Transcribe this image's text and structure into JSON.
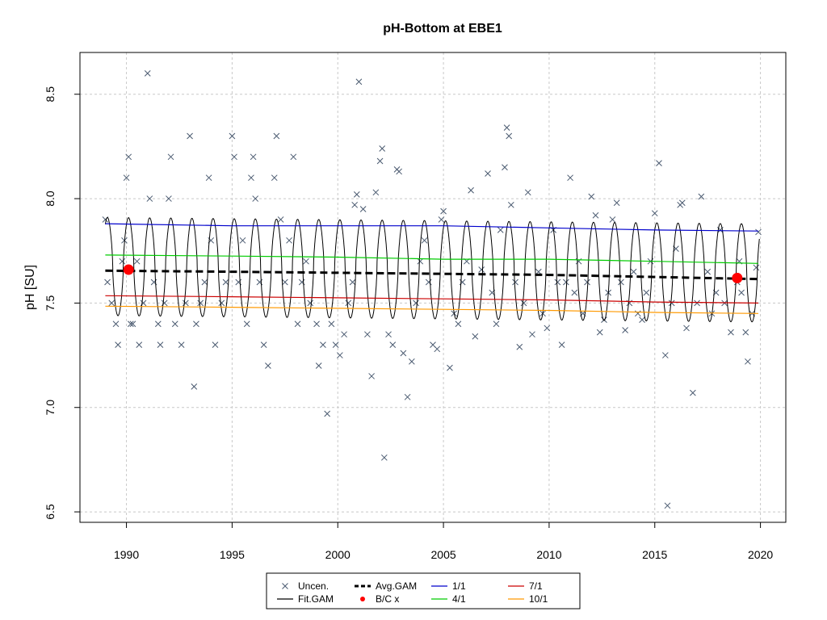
{
  "chart_data": {
    "type": "scatter",
    "title": "pH-Bottom at EBE1",
    "xlabel": "",
    "ylabel": "pH [SU]",
    "xlim": [
      1987.8,
      2021.2
    ],
    "ylim": [
      6.45,
      8.7
    ],
    "grid": true,
    "xticks": [
      1990,
      1995,
      2000,
      2005,
      2010,
      2015,
      2020
    ],
    "yticks": [
      6.5,
      7.0,
      7.5,
      8.0,
      8.5
    ],
    "ytick_labels": [
      "6.5",
      "7.0",
      "7.5",
      "8.0",
      "8.5"
    ],
    "legend_position": "bottom-center",
    "legend": [
      {
        "label": "Uncen.",
        "color": "#4a5a70",
        "kind": "x"
      },
      {
        "label": "Fit.GAM",
        "color": "#000000",
        "kind": "line"
      },
      {
        "label": "Avg.GAM",
        "color": "#000000",
        "kind": "dashed"
      },
      {
        "label": "B/C x",
        "color": "#ff0000",
        "kind": "dot"
      },
      {
        "label": "1/1",
        "color": "#0000cc",
        "kind": "line"
      },
      {
        "label": "4/1",
        "color": "#00cc00",
        "kind": "line"
      },
      {
        "label": "7/1",
        "color": "#cc0000",
        "kind": "line"
      },
      {
        "label": "10/1",
        "color": "#ff9900",
        "kind": "line"
      }
    ],
    "seasonal_lines": [
      {
        "name": "1/1",
        "color": "#0000cc",
        "x": [
          1989.0,
          1995,
          2000,
          2005,
          2010,
          2015,
          2019.9
        ],
        "y": [
          7.88,
          7.87,
          7.87,
          7.87,
          7.86,
          7.85,
          7.845
        ]
      },
      {
        "name": "4/1",
        "color": "#00cc00",
        "x": [
          1989.0,
          1995,
          2000,
          2005,
          2010,
          2015,
          2019.9
        ],
        "y": [
          7.73,
          7.725,
          7.72,
          7.71,
          7.71,
          7.7,
          7.69
        ]
      },
      {
        "name": "7/1",
        "color": "#cc0000",
        "x": [
          1989.0,
          1995,
          2000,
          2005,
          2010,
          2015,
          2019.9
        ],
        "y": [
          7.535,
          7.53,
          7.525,
          7.52,
          7.515,
          7.505,
          7.5
        ]
      },
      {
        "name": "10/1",
        "color": "#ff9900",
        "x": [
          1989.0,
          1995,
          2000,
          2005,
          2010,
          2015,
          2019.9
        ],
        "y": [
          7.485,
          7.48,
          7.475,
          7.47,
          7.465,
          7.455,
          7.45
        ]
      }
    ],
    "avg_gam": {
      "x": [
        1989.0,
        1995,
        2000,
        2005,
        2010,
        2015,
        2019.9
      ],
      "y": [
        7.655,
        7.65,
        7.645,
        7.64,
        7.635,
        7.625,
        7.615
      ]
    },
    "fit_gam": {
      "start": 1989.0,
      "end": 2019.95,
      "peak_x": [
        1989.0,
        2019.0
      ],
      "peak_y": [
        7.91,
        7.88
      ],
      "trough_x": [
        1989.0,
        2019.0
      ],
      "trough_y": [
        7.44,
        7.41
      ],
      "peak_phase": 0.1
    },
    "bc_points": [
      {
        "x": 1990.1,
        "y": 7.66
      },
      {
        "x": 2018.9,
        "y": 7.62
      }
    ],
    "uncensored": [
      [
        1989.0,
        7.9
      ],
      [
        1989.1,
        7.6
      ],
      [
        1989.3,
        7.5
      ],
      [
        1989.5,
        7.4
      ],
      [
        1989.6,
        7.3
      ],
      [
        1989.8,
        7.7
      ],
      [
        1989.9,
        7.8
      ],
      [
        1990.0,
        8.1
      ],
      [
        1990.1,
        8.2
      ],
      [
        1990.2,
        7.4
      ],
      [
        1990.3,
        7.4
      ],
      [
        1990.5,
        7.7
      ],
      [
        1990.6,
        7.3
      ],
      [
        1990.8,
        7.5
      ],
      [
        1991.0,
        8.6
      ],
      [
        1991.1,
        8.0
      ],
      [
        1991.3,
        7.6
      ],
      [
        1991.5,
        7.4
      ],
      [
        1991.6,
        7.3
      ],
      [
        1991.8,
        7.5
      ],
      [
        1992.0,
        8.0
      ],
      [
        1992.1,
        8.2
      ],
      [
        1992.3,
        7.4
      ],
      [
        1992.6,
        7.3
      ],
      [
        1992.8,
        7.5
      ],
      [
        1993.0,
        8.3
      ],
      [
        1993.2,
        7.1
      ],
      [
        1993.3,
        7.4
      ],
      [
        1993.5,
        7.5
      ],
      [
        1993.7,
        7.6
      ],
      [
        1993.9,
        8.1
      ],
      [
        1994.0,
        7.8
      ],
      [
        1994.2,
        7.3
      ],
      [
        1994.5,
        7.5
      ],
      [
        1994.7,
        7.6
      ],
      [
        1995.0,
        8.3
      ],
      [
        1995.1,
        8.2
      ],
      [
        1995.3,
        7.6
      ],
      [
        1995.5,
        7.8
      ],
      [
        1995.7,
        7.4
      ],
      [
        1995.9,
        8.1
      ],
      [
        1996.0,
        8.2
      ],
      [
        1996.1,
        8.0
      ],
      [
        1996.3,
        7.6
      ],
      [
        1996.5,
        7.3
      ],
      [
        1996.7,
        7.2
      ],
      [
        1997.0,
        8.1
      ],
      [
        1997.1,
        8.3
      ],
      [
        1997.3,
        7.9
      ],
      [
        1997.5,
        7.6
      ],
      [
        1997.7,
        7.8
      ],
      [
        1997.9,
        8.2
      ],
      [
        1998.1,
        7.4
      ],
      [
        1998.3,
        7.6
      ],
      [
        1998.5,
        7.7
      ],
      [
        1998.7,
        7.5
      ],
      [
        1999.0,
        7.4
      ],
      [
        1999.1,
        7.2
      ],
      [
        1999.3,
        7.3
      ],
      [
        1999.5,
        6.97
      ],
      [
        1999.7,
        7.4
      ],
      [
        1999.9,
        7.3
      ],
      [
        2000.1,
        7.25
      ],
      [
        2000.3,
        7.35
      ],
      [
        2000.5,
        7.5
      ],
      [
        2000.7,
        7.6
      ],
      [
        2000.8,
        7.97
      ],
      [
        2000.9,
        8.02
      ],
      [
        2001.0,
        8.56
      ],
      [
        2001.2,
        7.95
      ],
      [
        2001.4,
        7.35
      ],
      [
        2001.6,
        7.15
      ],
      [
        2001.8,
        8.03
      ],
      [
        2002.0,
        8.18
      ],
      [
        2002.1,
        8.24
      ],
      [
        2002.2,
        6.76
      ],
      [
        2002.4,
        7.35
      ],
      [
        2002.6,
        7.3
      ],
      [
        2002.8,
        8.14
      ],
      [
        2002.9,
        8.13
      ],
      [
        2003.1,
        7.26
      ],
      [
        2003.3,
        7.05
      ],
      [
        2003.5,
        7.22
      ],
      [
        2003.7,
        7.5
      ],
      [
        2003.9,
        7.7
      ],
      [
        2004.1,
        7.8
      ],
      [
        2004.3,
        7.6
      ],
      [
        2004.5,
        7.3
      ],
      [
        2004.7,
        7.28
      ],
      [
        2004.9,
        7.9
      ],
      [
        2005.0,
        7.94
      ],
      [
        2005.3,
        7.19
      ],
      [
        2005.5,
        7.45
      ],
      [
        2005.7,
        7.4
      ],
      [
        2005.9,
        7.6
      ],
      [
        2006.1,
        7.7
      ],
      [
        2006.3,
        8.04
      ],
      [
        2006.5,
        7.34
      ],
      [
        2006.8,
        7.66
      ],
      [
        2007.1,
        8.12
      ],
      [
        2007.3,
        7.55
      ],
      [
        2007.5,
        7.4
      ],
      [
        2007.7,
        7.85
      ],
      [
        2007.9,
        8.15
      ],
      [
        2008.0,
        8.34
      ],
      [
        2008.1,
        8.3
      ],
      [
        2008.2,
        7.97
      ],
      [
        2008.4,
        7.6
      ],
      [
        2008.6,
        7.29
      ],
      [
        2008.8,
        7.5
      ],
      [
        2009.0,
        8.03
      ],
      [
        2009.2,
        7.35
      ],
      [
        2009.5,
        7.65
      ],
      [
        2009.7,
        7.45
      ],
      [
        2009.9,
        7.38
      ],
      [
        2010.2,
        7.85
      ],
      [
        2010.4,
        7.6
      ],
      [
        2010.6,
        7.3
      ],
      [
        2010.8,
        7.6
      ],
      [
        2011.0,
        8.1
      ],
      [
        2011.2,
        7.55
      ],
      [
        2011.4,
        7.7
      ],
      [
        2011.6,
        7.45
      ],
      [
        2011.8,
        7.6
      ],
      [
        2012.0,
        8.01
      ],
      [
        2012.2,
        7.92
      ],
      [
        2012.4,
        7.36
      ],
      [
        2012.6,
        7.42
      ],
      [
        2012.8,
        7.55
      ],
      [
        2013.0,
        7.9
      ],
      [
        2013.2,
        7.98
      ],
      [
        2013.4,
        7.6
      ],
      [
        2013.6,
        7.37
      ],
      [
        2013.8,
        7.5
      ],
      [
        2014.0,
        7.65
      ],
      [
        2014.2,
        7.45
      ],
      [
        2014.4,
        7.42
      ],
      [
        2014.6,
        7.55
      ],
      [
        2014.8,
        7.7
      ],
      [
        2015.0,
        7.93
      ],
      [
        2015.2,
        8.17
      ],
      [
        2015.5,
        7.25
      ],
      [
        2015.6,
        6.53
      ],
      [
        2015.8,
        7.5
      ],
      [
        2016.0,
        7.76
      ],
      [
        2016.2,
        7.97
      ],
      [
        2016.3,
        7.98
      ],
      [
        2016.5,
        7.38
      ],
      [
        2016.8,
        7.07
      ],
      [
        2017.0,
        7.5
      ],
      [
        2017.2,
        8.01
      ],
      [
        2017.5,
        7.65
      ],
      [
        2017.7,
        7.45
      ],
      [
        2017.9,
        7.55
      ],
      [
        2018.1,
        7.85
      ],
      [
        2018.3,
        7.5
      ],
      [
        2018.6,
        7.36
      ],
      [
        2018.9,
        7.6
      ],
      [
        2019.0,
        7.7
      ],
      [
        2019.1,
        7.55
      ],
      [
        2019.3,
        7.36
      ],
      [
        2019.4,
        7.22
      ],
      [
        2019.6,
        7.45
      ],
      [
        2019.8,
        7.67
      ],
      [
        2019.9,
        7.84
      ]
    ]
  }
}
